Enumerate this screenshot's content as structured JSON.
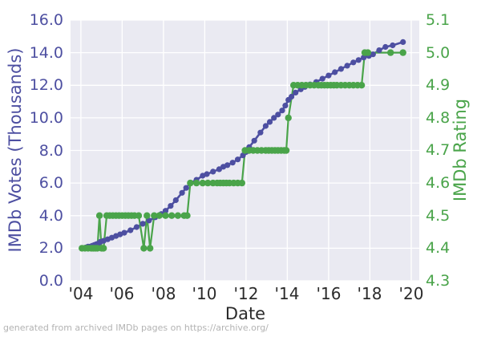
{
  "figure": {
    "footer": "generated from archived IMDb pages on https://archive.org/"
  },
  "colors": {
    "votes_purple": "#4d4fa1",
    "rating_green": "#4aa44a",
    "x_tick_text": "#2b2b2b",
    "plot_background": "#eaeaf2",
    "gridline": "#ffffff",
    "footer_text": "#b3b3b3",
    "figure_background": "#ffffff"
  },
  "chart_data": {
    "type": "line",
    "title": "",
    "xlabel": "Date",
    "ylabel_left": "IMDb Votes (Thousands)",
    "ylabel_right": "IMDb Rating",
    "grid": true,
    "legend": "none",
    "xlim": [
      2003.5,
      2020.39
    ],
    "left_lim": [
      0,
      16
    ],
    "right_lim": [
      4.3,
      5.1
    ],
    "x_ticks": {
      "labels": [
        "'04",
        "'06",
        "'08",
        "'10",
        "'12",
        "'14",
        "'16",
        "'18",
        "'20"
      ],
      "values": [
        2004,
        2006,
        2008,
        2010,
        2012,
        2014,
        2016,
        2018,
        2020
      ]
    },
    "left_ticks": {
      "labels": [
        "0.0",
        "2.0",
        "4.0",
        "6.0",
        "8.0",
        "10.0",
        "12.0",
        "14.0",
        "16.0"
      ],
      "values": [
        0,
        2,
        4,
        6,
        8,
        10,
        12,
        14,
        16
      ]
    },
    "right_ticks": {
      "labels": [
        "4.3",
        "4.4",
        "4.5",
        "4.6",
        "4.7",
        "4.8",
        "4.9",
        "5.0",
        "5.1"
      ],
      "values": [
        4.3,
        4.4,
        4.5,
        4.6,
        4.7,
        4.8,
        4.9,
        5.0,
        5.1
      ]
    },
    "series": [
      {
        "name": "IMDb Votes (Thousands)",
        "axis": "left",
        "color": "#4d4fa1",
        "marker_radius": 3.6,
        "line_width": 2.6,
        "x": [
          2004.05,
          2004.15,
          2004.25,
          2004.35,
          2004.45,
          2004.55,
          2004.65,
          2004.75,
          2004.85,
          2004.95,
          2005.1,
          2005.3,
          2005.5,
          2005.7,
          2005.9,
          2006.1,
          2006.4,
          2006.7,
          2007.0,
          2007.3,
          2007.6,
          2007.9,
          2008.1,
          2008.35,
          2008.6,
          2008.9,
          2009.1,
          2009.3,
          2009.6,
          2009.9,
          2010.1,
          2010.4,
          2010.7,
          2010.9,
          2011.1,
          2011.35,
          2011.6,
          2011.85,
          2012.0,
          2012.15,
          2012.4,
          2012.7,
          2012.95,
          2013.15,
          2013.35,
          2013.55,
          2013.75,
          2013.9,
          2014.05,
          2014.2,
          2014.4,
          2014.65,
          2014.85,
          2015.1,
          2015.4,
          2015.7,
          2016.0,
          2016.3,
          2016.6,
          2016.9,
          2017.2,
          2017.45,
          2017.7,
          2017.95,
          2018.15,
          2018.45,
          2018.75,
          2019.1,
          2019.6
        ],
        "y": [
          2.0,
          2.0,
          2.05,
          2.1,
          2.1,
          2.15,
          2.2,
          2.25,
          2.3,
          2.4,
          2.45,
          2.55,
          2.65,
          2.75,
          2.85,
          2.95,
          3.1,
          3.3,
          3.5,
          3.7,
          3.9,
          4.1,
          4.3,
          4.6,
          4.95,
          5.4,
          5.7,
          6.0,
          6.2,
          6.45,
          6.55,
          6.7,
          6.85,
          7.0,
          7.1,
          7.25,
          7.45,
          7.7,
          7.9,
          8.2,
          8.6,
          9.1,
          9.5,
          9.75,
          10.0,
          10.2,
          10.45,
          10.75,
          11.1,
          11.3,
          11.55,
          11.75,
          11.9,
          12.05,
          12.2,
          12.4,
          12.6,
          12.8,
          13.0,
          13.2,
          13.4,
          13.55,
          13.7,
          13.8,
          13.9,
          14.15,
          14.35,
          14.45,
          14.65
        ]
      },
      {
        "name": "IMDb Rating",
        "axis": "right",
        "color": "#4aa44a",
        "marker_radius": 4.2,
        "line_width": 2.2,
        "x": [
          2004.05,
          2004.2,
          2004.35,
          2004.5,
          2004.6,
          2004.7,
          2004.8,
          2004.9,
          2005.0,
          2005.1,
          2005.25,
          2005.4,
          2005.55,
          2005.7,
          2005.85,
          2006.0,
          2006.15,
          2006.3,
          2006.45,
          2006.6,
          2006.8,
          2007.05,
          2007.2,
          2007.35,
          2007.55,
          2007.8,
          2008.1,
          2008.4,
          2008.7,
          2009.0,
          2009.15,
          2009.3,
          2009.6,
          2009.9,
          2010.15,
          2010.4,
          2010.6,
          2010.75,
          2010.9,
          2011.05,
          2011.2,
          2011.4,
          2011.6,
          2011.8,
          2011.95,
          2012.15,
          2012.35,
          2012.55,
          2012.75,
          2012.95,
          2013.1,
          2013.25,
          2013.4,
          2013.55,
          2013.7,
          2013.85,
          2013.95,
          2014.05,
          2014.3,
          2014.5,
          2014.7,
          2014.9,
          2015.1,
          2015.3,
          2015.5,
          2015.65,
          2015.8,
          2015.95,
          2016.1,
          2016.25,
          2016.4,
          2016.6,
          2016.8,
          2017.0,
          2017.2,
          2017.4,
          2017.6,
          2017.75,
          2017.9,
          2019.0,
          2019.6
        ],
        "y": [
          4.4,
          4.4,
          4.4,
          4.4,
          4.4,
          4.4,
          4.4,
          4.5,
          4.4,
          4.4,
          4.5,
          4.5,
          4.5,
          4.5,
          4.5,
          4.5,
          4.5,
          4.5,
          4.5,
          4.5,
          4.5,
          4.4,
          4.5,
          4.4,
          4.5,
          4.5,
          4.5,
          4.5,
          4.5,
          4.5,
          4.5,
          4.6,
          4.6,
          4.6,
          4.6,
          4.6,
          4.6,
          4.6,
          4.6,
          4.6,
          4.6,
          4.6,
          4.6,
          4.6,
          4.7,
          4.7,
          4.7,
          4.7,
          4.7,
          4.7,
          4.7,
          4.7,
          4.7,
          4.7,
          4.7,
          4.7,
          4.7,
          4.8,
          4.9,
          4.9,
          4.9,
          4.9,
          4.9,
          4.9,
          4.9,
          4.9,
          4.9,
          4.9,
          4.9,
          4.9,
          4.9,
          4.9,
          4.9,
          4.9,
          4.9,
          4.9,
          4.9,
          5.0,
          5.0,
          5.0,
          5.0
        ]
      }
    ]
  }
}
